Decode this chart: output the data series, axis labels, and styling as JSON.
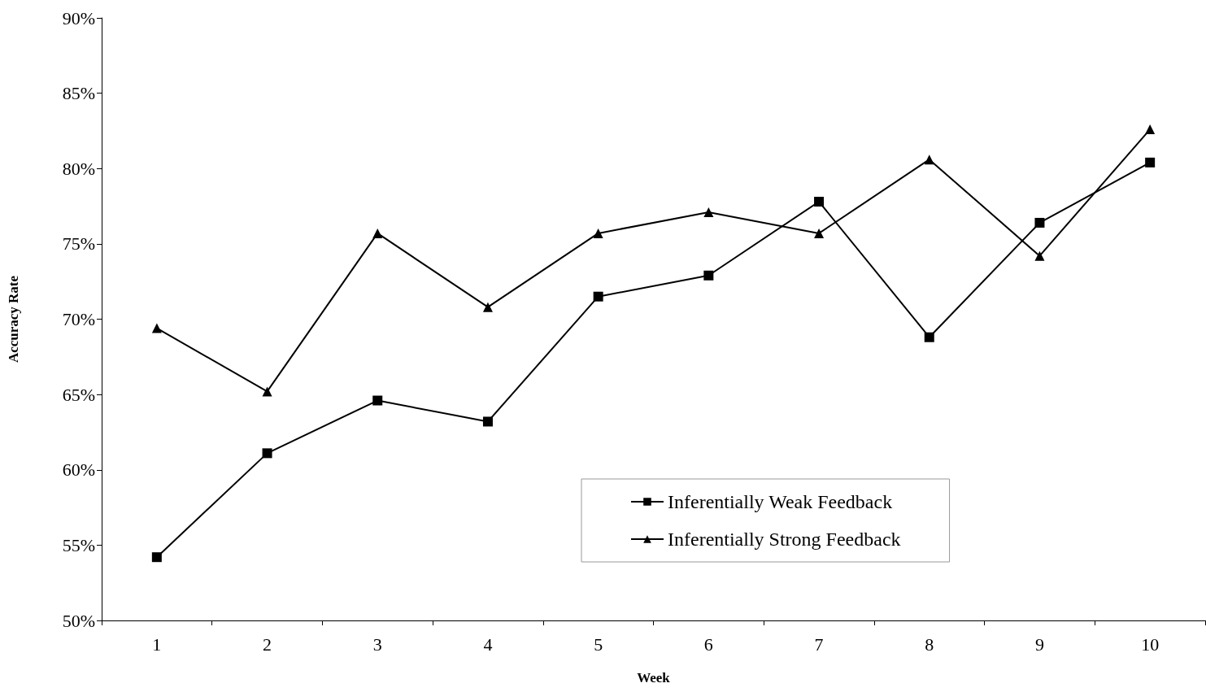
{
  "chart_data": {
    "type": "line",
    "xlabel": "Week",
    "ylabel": "Accuracy Rate",
    "categories": [
      "1",
      "2",
      "3",
      "4",
      "5",
      "6",
      "7",
      "8",
      "9",
      "10"
    ],
    "series": [
      {
        "name": "Inferentially Weak Feedback",
        "color": "#000000",
        "marker": "square",
        "values": [
          54.2,
          61.1,
          64.6,
          63.2,
          71.5,
          72.9,
          77.8,
          68.8,
          76.4,
          80.4
        ]
      },
      {
        "name": "Inferentially Strong Feedback",
        "color": "#000000",
        "marker": "triangle",
        "values": [
          69.4,
          65.2,
          75.7,
          70.8,
          75.7,
          77.1,
          75.7,
          80.6,
          74.2,
          82.6
        ]
      }
    ],
    "ylim": [
      50,
      90
    ],
    "yticks": [
      {
        "value": 50,
        "label": "50%"
      },
      {
        "value": 55,
        "label": "55%"
      },
      {
        "value": 60,
        "label": "60%"
      },
      {
        "value": 65,
        "label": "65%"
      },
      {
        "value": 70,
        "label": "70%"
      },
      {
        "value": 75,
        "label": "75%"
      },
      {
        "value": 80,
        "label": "80%"
      },
      {
        "value": 85,
        "label": "85%"
      },
      {
        "value": 90,
        "label": "90%"
      }
    ],
    "grid": false,
    "legend": "bottom",
    "line_style": "solid"
  }
}
